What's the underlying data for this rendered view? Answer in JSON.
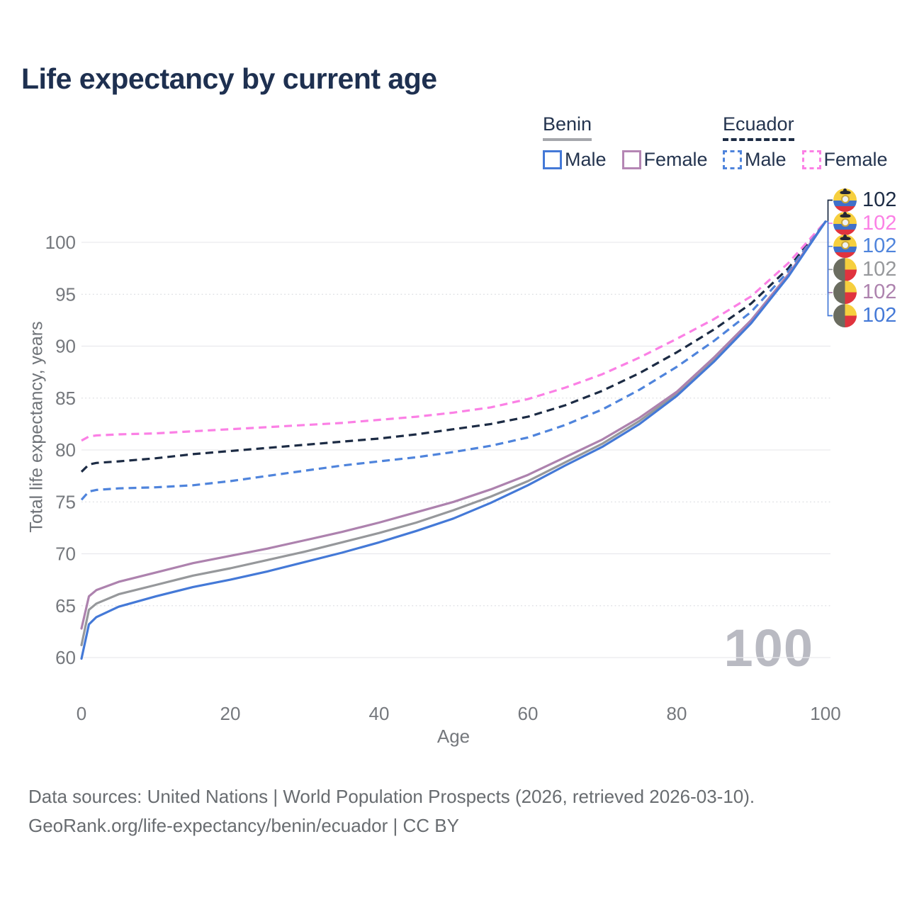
{
  "title": "Life expectancy by current age",
  "watermark_current_age": "100",
  "legend": {
    "groups": [
      {
        "title": "Benin",
        "line_style": "solid",
        "underline_color": "#a5a7ac",
        "items": [
          {
            "label": "Male",
            "color": "#4479d7",
            "dashed": false
          },
          {
            "label": "Female",
            "color": "#b586b4",
            "dashed": false
          }
        ]
      },
      {
        "title": "Ecuador",
        "line_style": "dashed",
        "underline_color": "#1d2c45",
        "items": [
          {
            "label": "Male",
            "color": "#4f84dc",
            "dashed": true
          },
          {
            "label": "Female",
            "color": "#fb80e5",
            "dashed": true
          }
        ]
      }
    ]
  },
  "chart_data": {
    "type": "line",
    "title": "Life expectancy by current age",
    "xlabel": "Age",
    "ylabel": "Total life expectancy, years",
    "xlim": [
      0,
      100
    ],
    "ylim": [
      58,
      103
    ],
    "xticks": [
      0,
      20,
      40,
      60,
      80,
      100
    ],
    "yticks": [
      60,
      65,
      70,
      75,
      80,
      85,
      90,
      95,
      100
    ],
    "grid": "horizontal-only",
    "legend_position": "top-right",
    "x": [
      0,
      1,
      2,
      5,
      10,
      15,
      20,
      25,
      30,
      35,
      40,
      45,
      50,
      55,
      60,
      65,
      70,
      75,
      80,
      85,
      90,
      95,
      100
    ],
    "series": [
      {
        "name": "Ecuador total",
        "country": "Ecuador",
        "flag": "ecuador",
        "color": "#1c2b44",
        "dash": true,
        "end_label": "102",
        "values": [
          77.9,
          78.6,
          78.75,
          78.9,
          79.2,
          79.6,
          79.9,
          80.2,
          80.5,
          80.8,
          81.1,
          81.5,
          82.0,
          82.5,
          83.2,
          84.3,
          85.7,
          87.4,
          89.4,
          91.6,
          94.1,
          97.5,
          102
        ]
      },
      {
        "name": "Ecuador female",
        "country": "Ecuador",
        "flag": "ecuador",
        "color": "#fb80e5",
        "dash": true,
        "end_label": "102",
        "values": [
          80.9,
          81.3,
          81.4,
          81.5,
          81.6,
          81.8,
          82.0,
          82.2,
          82.4,
          82.6,
          82.9,
          83.2,
          83.6,
          84.1,
          84.9,
          86.0,
          87.3,
          88.9,
          90.7,
          92.6,
          94.8,
          98.0,
          102
        ]
      },
      {
        "name": "Ecuador male",
        "country": "Ecuador",
        "flag": "ecuador",
        "color": "#4f84dc",
        "dash": true,
        "end_label": "102",
        "values": [
          75.2,
          76.0,
          76.15,
          76.3,
          76.4,
          76.6,
          77.0,
          77.5,
          78.0,
          78.5,
          78.9,
          79.3,
          79.8,
          80.4,
          81.2,
          82.4,
          83.9,
          85.8,
          88.0,
          90.5,
          93.3,
          97.2,
          102
        ]
      },
      {
        "name": "Benin total",
        "country": "Benin",
        "flag": "benin",
        "color": "#96989b",
        "dash": false,
        "end_label": "102",
        "values": [
          61.2,
          64.6,
          65.2,
          66.1,
          67.0,
          67.9,
          68.6,
          69.4,
          70.2,
          71.1,
          72.0,
          73.0,
          74.2,
          75.5,
          77.0,
          78.8,
          80.6,
          82.8,
          85.4,
          88.7,
          92.4,
          96.8,
          102
        ]
      },
      {
        "name": "Benin female",
        "country": "Benin",
        "flag": "benin",
        "color": "#ad82ae",
        "dash": false,
        "end_label": "102",
        "values": [
          62.8,
          65.9,
          66.5,
          67.3,
          68.2,
          69.1,
          69.8,
          70.5,
          71.3,
          72.1,
          73.0,
          74.0,
          75.0,
          76.2,
          77.6,
          79.3,
          81.0,
          83.1,
          85.6,
          88.9,
          92.5,
          96.9,
          102
        ]
      },
      {
        "name": "Benin male",
        "country": "Benin",
        "flag": "benin",
        "color": "#4479d7",
        "dash": false,
        "end_label": "102",
        "values": [
          59.9,
          63.2,
          63.9,
          64.9,
          65.9,
          66.8,
          67.5,
          68.3,
          69.2,
          70.1,
          71.1,
          72.2,
          73.4,
          74.9,
          76.6,
          78.5,
          80.3,
          82.5,
          85.2,
          88.5,
          92.2,
          96.7,
          102
        ]
      }
    ]
  },
  "footer": {
    "line1": "Data sources: United Nations | World Population Prospects (2026, retrieved 2026-03-10).",
    "line2": "GeoRank.org/life-expectancy/benin/ecuador | CC BY"
  },
  "colors": {
    "title_text": "#1e3050",
    "legend_text": "#24344f",
    "axis_text": "#75787d",
    "grid_major": "#e9e9ed",
    "grid_minor": "#d8d9de",
    "watermark": "#b9bac2",
    "background": "#ffffff"
  }
}
